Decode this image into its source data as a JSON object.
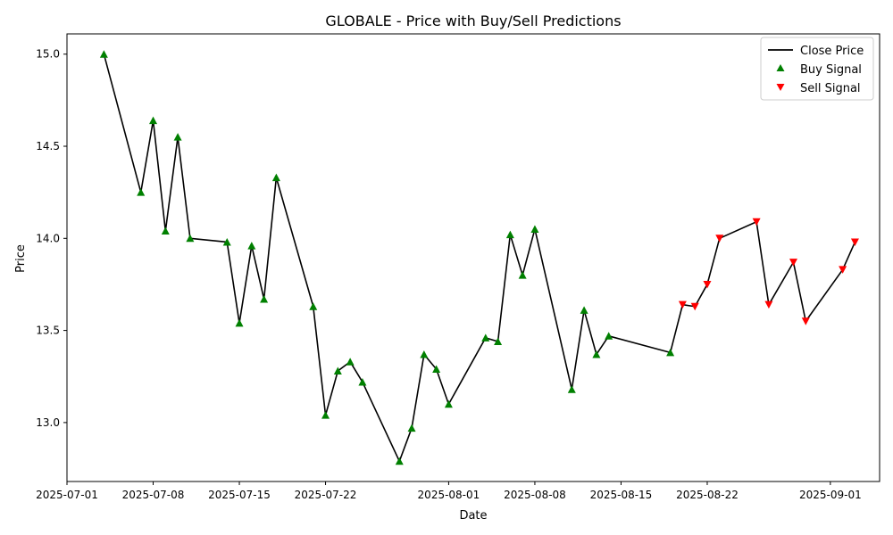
{
  "chart_data": {
    "type": "line",
    "title": "GLOBALE - Price with Buy/Sell Predictions",
    "xlabel": "Date",
    "ylabel": "Price",
    "xlim": [
      "2025-07-01",
      "2025-09-05"
    ],
    "ylim": [
      12.68,
      15.11
    ],
    "x_ticks": [
      "2025-07-01",
      "2025-07-08",
      "2025-07-15",
      "2025-07-22",
      "2025-08-01",
      "2025-08-08",
      "2025-08-15",
      "2025-08-22",
      "2025-09-01"
    ],
    "y_ticks": [
      13.0,
      13.5,
      14.0,
      14.5,
      15.0
    ],
    "grid": false,
    "legend_position": "top-right",
    "colors": {
      "close": "#000000",
      "buy": "#008000",
      "sell": "#ff0000"
    },
    "series": [
      {
        "name": "Close Price",
        "kind": "line",
        "points": [
          [
            "2025-07-04",
            15.0
          ],
          [
            "2025-07-07",
            14.25
          ],
          [
            "2025-07-08",
            14.64
          ],
          [
            "2025-07-09",
            14.04
          ],
          [
            "2025-07-10",
            14.55
          ],
          [
            "2025-07-11",
            14.0
          ],
          [
            "2025-07-14",
            13.98
          ],
          [
            "2025-07-15",
            13.54
          ],
          [
            "2025-07-16",
            13.96
          ],
          [
            "2025-07-17",
            13.67
          ],
          [
            "2025-07-18",
            14.33
          ],
          [
            "2025-07-21",
            13.63
          ],
          [
            "2025-07-22",
            13.04
          ],
          [
            "2025-07-23",
            13.28
          ],
          [
            "2025-07-24",
            13.33
          ],
          [
            "2025-07-25",
            13.22
          ],
          [
            "2025-07-28",
            12.79
          ],
          [
            "2025-07-29",
            12.97
          ],
          [
            "2025-07-30",
            13.37
          ],
          [
            "2025-07-31",
            13.29
          ],
          [
            "2025-08-01",
            13.1
          ],
          [
            "2025-08-04",
            13.46
          ],
          [
            "2025-08-05",
            13.44
          ],
          [
            "2025-08-06",
            14.02
          ],
          [
            "2025-08-07",
            13.8
          ],
          [
            "2025-08-08",
            14.05
          ],
          [
            "2025-08-11",
            13.18
          ],
          [
            "2025-08-12",
            13.61
          ],
          [
            "2025-08-13",
            13.37
          ],
          [
            "2025-08-14",
            13.47
          ],
          [
            "2025-08-19",
            13.38
          ],
          [
            "2025-08-20",
            13.64
          ],
          [
            "2025-08-21",
            13.63
          ],
          [
            "2025-08-22",
            13.75
          ],
          [
            "2025-08-23",
            14.0
          ],
          [
            "2025-08-26",
            14.09
          ],
          [
            "2025-08-27",
            13.64
          ],
          [
            "2025-08-29",
            13.87
          ],
          [
            "2025-08-30",
            13.55
          ],
          [
            "2025-09-02",
            13.83
          ],
          [
            "2025-09-03",
            13.98
          ]
        ]
      },
      {
        "name": "Buy Signal",
        "kind": "marker-up",
        "points": [
          [
            "2025-07-04",
            15.0
          ],
          [
            "2025-07-07",
            14.25
          ],
          [
            "2025-07-08",
            14.64
          ],
          [
            "2025-07-09",
            14.04
          ],
          [
            "2025-07-10",
            14.55
          ],
          [
            "2025-07-11",
            14.0
          ],
          [
            "2025-07-14",
            13.98
          ],
          [
            "2025-07-15",
            13.54
          ],
          [
            "2025-07-16",
            13.96
          ],
          [
            "2025-07-17",
            13.67
          ],
          [
            "2025-07-18",
            14.33
          ],
          [
            "2025-07-21",
            13.63
          ],
          [
            "2025-07-22",
            13.04
          ],
          [
            "2025-07-23",
            13.28
          ],
          [
            "2025-07-24",
            13.33
          ],
          [
            "2025-07-25",
            13.22
          ],
          [
            "2025-07-28",
            12.79
          ],
          [
            "2025-07-29",
            12.97
          ],
          [
            "2025-07-30",
            13.37
          ],
          [
            "2025-07-31",
            13.29
          ],
          [
            "2025-08-01",
            13.1
          ],
          [
            "2025-08-04",
            13.46
          ],
          [
            "2025-08-05",
            13.44
          ],
          [
            "2025-08-06",
            14.02
          ],
          [
            "2025-08-07",
            13.8
          ],
          [
            "2025-08-08",
            14.05
          ],
          [
            "2025-08-11",
            13.18
          ],
          [
            "2025-08-12",
            13.61
          ],
          [
            "2025-08-13",
            13.37
          ],
          [
            "2025-08-14",
            13.47
          ],
          [
            "2025-08-19",
            13.38
          ]
        ]
      },
      {
        "name": "Sell Signal",
        "kind": "marker-down",
        "points": [
          [
            "2025-08-20",
            13.64
          ],
          [
            "2025-08-21",
            13.63
          ],
          [
            "2025-08-22",
            13.75
          ],
          [
            "2025-08-23",
            14.0
          ],
          [
            "2025-08-26",
            14.09
          ],
          [
            "2025-08-27",
            13.64
          ],
          [
            "2025-08-29",
            13.87
          ],
          [
            "2025-08-30",
            13.55
          ],
          [
            "2025-09-02",
            13.83
          ],
          [
            "2025-09-03",
            13.98
          ]
        ]
      }
    ],
    "legend": {
      "close_label": "Close Price",
      "buy_label": "Buy Signal",
      "sell_label": "Sell Signal"
    }
  }
}
